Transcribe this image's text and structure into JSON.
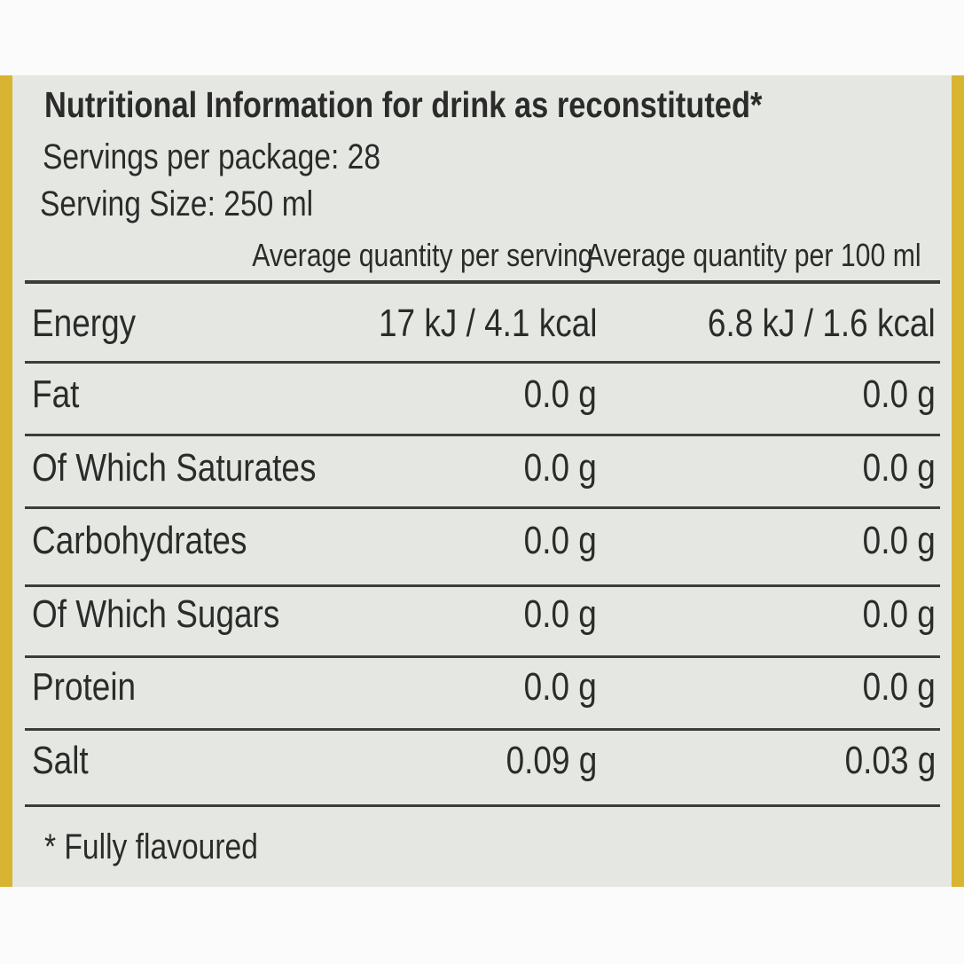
{
  "header": {
    "title": "Nutritional Information for drink as reconstituted*",
    "servings": "Servings per package: 28",
    "serving_size": "Serving Size: 250 ml"
  },
  "table": {
    "columns": [
      "Average quantity per serving",
      "Average quantity per 100 ml"
    ],
    "rows": [
      [
        "Energy",
        "17 kJ / 4.1 kcal",
        "6.8 kJ / 1.6 kcal"
      ],
      [
        "Fat",
        "0.0 g",
        "0.0 g"
      ],
      [
        "Of Which Saturates",
        "0.0 g",
        "0.0 g"
      ],
      [
        "Carbohydrates",
        "0.0 g",
        "0.0 g"
      ],
      [
        "Of Which Sugars",
        "0.0 g",
        "0.0 g"
      ],
      [
        "Protein",
        "0.0 g",
        "0.0 g"
      ],
      [
        "Salt",
        "0.09 g",
        "0.03 g"
      ]
    ]
  },
  "footnote": "* Fully flavoured"
}
